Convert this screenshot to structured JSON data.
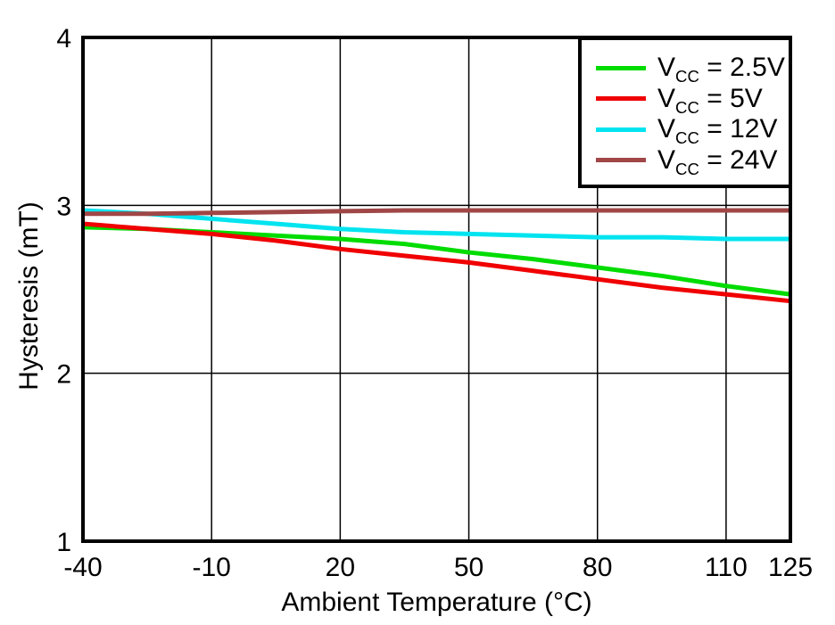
{
  "chart_data": {
    "type": "line",
    "title": "",
    "xlabel": "Ambient Temperature (°C)",
    "ylabel": "Hysteresis (mT)",
    "xlim": [
      -40,
      125
    ],
    "ylim": [
      1,
      4
    ],
    "xticks": [
      -40,
      -10,
      20,
      50,
      80,
      110,
      125
    ],
    "yticks": [
      1,
      2,
      3,
      4
    ],
    "grid": true,
    "legend_position": "top-right",
    "x": [
      -40,
      -25,
      -10,
      5,
      20,
      35,
      50,
      65,
      80,
      95,
      110,
      125
    ],
    "series": [
      {
        "name": "VCC = 2.5V",
        "legend": {
          "base": "V",
          "sub": "CC",
          "rest": "= 2.5V"
        },
        "color": "#00DC00",
        "values": [
          2.87,
          2.86,
          2.84,
          2.82,
          2.8,
          2.77,
          2.72,
          2.68,
          2.63,
          2.58,
          2.52,
          2.47
        ]
      },
      {
        "name": "VCC = 5V",
        "legend": {
          "base": "V",
          "sub": "CC",
          "rest": "= 5V"
        },
        "color": "#F00000",
        "values": [
          2.89,
          2.86,
          2.83,
          2.79,
          2.74,
          2.7,
          2.66,
          2.61,
          2.56,
          2.51,
          2.47,
          2.43
        ]
      },
      {
        "name": "VCC = 12V",
        "legend": {
          "base": "V",
          "sub": "CC",
          "rest": "= 12V"
        },
        "color": "#00E4F0",
        "values": [
          2.97,
          2.95,
          2.92,
          2.89,
          2.86,
          2.84,
          2.83,
          2.82,
          2.81,
          2.81,
          2.8,
          2.8
        ]
      },
      {
        "name": "VCC = 24V",
        "legend": {
          "base": "V",
          "sub": "CC",
          "rest": "= 24V"
        },
        "color": "#A04646",
        "values": [
          2.95,
          2.95,
          2.955,
          2.96,
          2.965,
          2.97,
          2.97,
          2.97,
          2.97,
          2.97,
          2.97,
          2.97
        ]
      }
    ],
    "style": {
      "grid_color": "#000000",
      "border_color": "#000000",
      "background": "#FFFFFF",
      "line_width": 5
    }
  }
}
